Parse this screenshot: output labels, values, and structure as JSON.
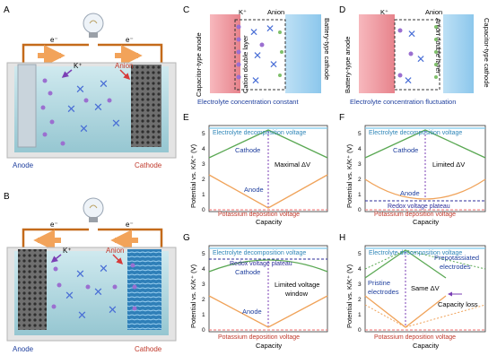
{
  "panels": {
    "A": {
      "letter": "A",
      "electron_left": "e⁻",
      "electron_right": "e⁻",
      "cation": "K⁺",
      "anion": "Anion",
      "anode": "Anode",
      "cathode": "Cathode"
    },
    "B": {
      "letter": "B",
      "electron_left": "e⁻",
      "electron_right": "e⁻",
      "cation": "K⁺",
      "anion": "Anion",
      "anode": "Anode",
      "cathode": "Cathode"
    },
    "C": {
      "letter": "C",
      "left_side": "Capacitor-type anode",
      "double_layer": "Cation double layer",
      "right_side": "Battery-type cathode",
      "cation": "K⁺",
      "anion": "Anion",
      "caption": "Electrolyte concentration constant"
    },
    "D": {
      "letter": "D",
      "left_side": "Battery-type anode",
      "double_layer": "Anion double layer",
      "right_side": "Capacitor-type cathode",
      "cation": "K⁺",
      "anion": "Anion",
      "caption": "Electrolyte concentration fluctuation"
    },
    "E": {
      "letter": "E",
      "ylabel": "Potential vs. K/K⁺ (V)",
      "xlabel": "Capacity",
      "top_line": "Electrolyte decomposition voltage",
      "bottom_line": "Potassium deposition voltage",
      "upper_curve": "Cathode",
      "lower_curve": "Anode",
      "annotation": "Maximal ΔV",
      "yticks": [
        "0",
        "1",
        "2",
        "3",
        "4",
        "5"
      ]
    },
    "F": {
      "letter": "F",
      "ylabel": "Potential vs. K/K⁺ (V)",
      "xlabel": "Capacity",
      "top_line": "Electrolyte decomposition voltage",
      "bottom_line": "Potassium deposition voltage",
      "plateau": "Redox voltage plateau",
      "upper_curve": "Cathode",
      "lower_curve": "Anode",
      "annotation": "Limited ΔV",
      "yticks": [
        "0",
        "1",
        "2",
        "3",
        "4",
        "5"
      ]
    },
    "G": {
      "letter": "G",
      "ylabel": "Potential vs. K/K⁺ (V)",
      "xlabel": "Capacity",
      "top_line": "Electrolyte decomposition voltage",
      "bottom_line": "Potassium deposition voltage",
      "plateau": "Redox voltage plateau",
      "upper_curve": "Cathode",
      "lower_curve": "Anode",
      "annotation_1": "Limited voltage",
      "annotation_2": "window",
      "yticks": [
        "0",
        "1",
        "2",
        "3",
        "4",
        "5"
      ]
    },
    "H": {
      "letter": "H",
      "ylabel": "Potential vs. K/K⁺ (V)",
      "xlabel": "Capacity",
      "top_line": "Electrolyte decomposition voltage",
      "bottom_line": "Potassium deposition voltage",
      "pristine_1": "Pristine",
      "pristine_2": "electrodes",
      "prepot_1": "Prepotassiated",
      "prepot_2": "electrodes",
      "annotation": "Same ΔV",
      "capacity_loss": "Capacity loss",
      "yticks": [
        "0",
        "1",
        "2",
        "3",
        "4",
        "5"
      ]
    }
  },
  "colors": {
    "cathode_curve": "#5aa853",
    "anode_curve": "#f0a35a",
    "decomposition_line": "#7cc6ea",
    "deposition_line": "#f28a8a",
    "plateau_line": "#2d2d9a",
    "dashed_arrow": "#7b3fb5",
    "potassium_ion": "#9b6fd0",
    "anion": "#4a6fd6",
    "electron_arrow": "#f2a35a",
    "circuit_wire": "#c46a1a",
    "label_blue": "#1f3f9e",
    "label_red": "#c0392b",
    "cap_electrode": "#f2a0a8",
    "bat_electrode": "#a8d4f0"
  }
}
